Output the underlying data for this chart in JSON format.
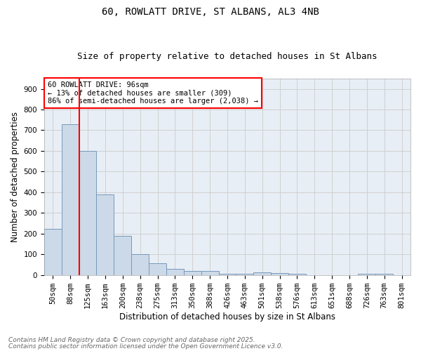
{
  "title1": "60, ROWLATT DRIVE, ST ALBANS, AL3 4NB",
  "title2": "Size of property relative to detached houses in St Albans",
  "xlabel": "Distribution of detached houses by size in St Albans",
  "ylabel": "Number of detached properties",
  "categories": [
    "50sqm",
    "88sqm",
    "125sqm",
    "163sqm",
    "200sqm",
    "238sqm",
    "275sqm",
    "313sqm",
    "350sqm",
    "388sqm",
    "426sqm",
    "463sqm",
    "501sqm",
    "538sqm",
    "576sqm",
    "613sqm",
    "651sqm",
    "688sqm",
    "726sqm",
    "763sqm",
    "801sqm"
  ],
  "values": [
    222,
    730,
    600,
    390,
    190,
    100,
    58,
    28,
    20,
    18,
    5,
    5,
    11,
    10,
    5,
    0,
    0,
    0,
    5,
    7,
    0
  ],
  "bar_color": "#ccd9e8",
  "bar_edge_color": "#7799bb",
  "vline_color": "red",
  "vline_linewidth": 1.5,
  "vline_pos": 1.5,
  "annotation_text_line1": "60 ROWLATT DRIVE: 96sqm",
  "annotation_text_line2": "← 13% of detached houses are smaller (309)",
  "annotation_text_line3": "86% of semi-detached houses are larger (2,038) →",
  "box_edge_color": "red",
  "box_face_color": "white",
  "ylim": [
    0,
    950
  ],
  "yticks": [
    0,
    100,
    200,
    300,
    400,
    500,
    600,
    700,
    800,
    900
  ],
  "grid_color": "#cccccc",
  "background_color": "#e8eef5",
  "footnote1": "Contains HM Land Registry data © Crown copyright and database right 2025.",
  "footnote2": "Contains public sector information licensed under the Open Government Licence v3.0.",
  "title1_fontsize": 10,
  "title2_fontsize": 9,
  "axis_label_fontsize": 8.5,
  "tick_fontsize": 7.5,
  "annotation_fontsize": 7.5,
  "footnote_fontsize": 6.5
}
